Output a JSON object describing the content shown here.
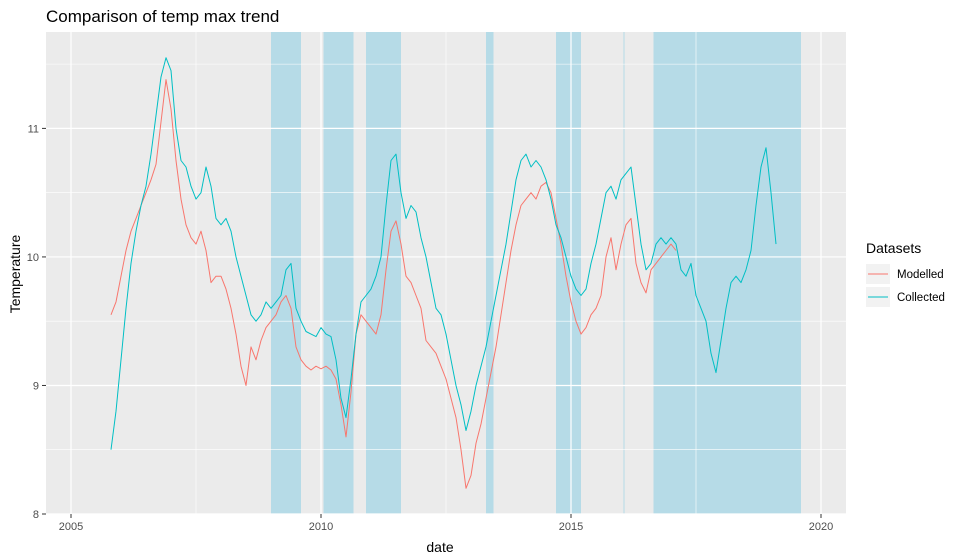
{
  "chart_data": {
    "type": "line",
    "title": "Comparison of temp max trend",
    "xlabel": "date",
    "ylabel": "Temperature",
    "xlim": [
      2004.5,
      2020.5
    ],
    "ylim": [
      8.0,
      11.75
    ],
    "x_ticks": [
      2005,
      2010,
      2015,
      2020
    ],
    "y_ticks": [
      8,
      9,
      10,
      11
    ],
    "grid": true,
    "panel_background": "#ebebeb",
    "grid_color": "#ffffff",
    "shade_color": "#add8e6",
    "shaded_ranges": [
      [
        2009.0,
        2009.6
      ],
      [
        2010.05,
        2010.65
      ],
      [
        2010.9,
        2011.6
      ],
      [
        2013.3,
        2013.45
      ],
      [
        2014.7,
        2015.2
      ],
      [
        2016.05,
        2016.07
      ],
      [
        2016.65,
        2019.6
      ]
    ],
    "legend": {
      "title": "Datasets",
      "position": "right",
      "entries": [
        {
          "label": "Modelled",
          "color": "#f8766d"
        },
        {
          "label": "Collected",
          "color": "#00bfc4"
        }
      ]
    },
    "series": [
      {
        "name": "Modelled",
        "color": "#f8766d",
        "x": [
          2005.8,
          2005.9,
          2006.0,
          2006.1,
          2006.2,
          2006.3,
          2006.4,
          2006.5,
          2006.6,
          2006.7,
          2006.8,
          2006.9,
          2007.0,
          2007.1,
          2007.2,
          2007.3,
          2007.4,
          2007.5,
          2007.6,
          2007.7,
          2007.8,
          2007.9,
          2008.0,
          2008.1,
          2008.2,
          2008.3,
          2008.4,
          2008.5,
          2008.6,
          2008.7,
          2008.8,
          2008.9,
          2009.0,
          2009.1,
          2009.2,
          2009.3,
          2009.4,
          2009.5,
          2009.6,
          2009.7,
          2009.8,
          2009.9,
          2010.0,
          2010.1,
          2010.2,
          2010.3,
          2010.4,
          2010.5,
          2010.6,
          2010.7,
          2010.8,
          2010.9,
          2011.0,
          2011.1,
          2011.2,
          2011.3,
          2011.4,
          2011.5,
          2011.6,
          2011.7,
          2011.8,
          2011.9,
          2012.0,
          2012.1,
          2012.2,
          2012.3,
          2012.4,
          2012.5,
          2012.6,
          2012.7,
          2012.8,
          2012.9,
          2013.0,
          2013.1,
          2013.2,
          2013.3,
          2013.4,
          2013.5,
          2013.6,
          2013.7,
          2013.8,
          2013.9,
          2014.0,
          2014.1,
          2014.2,
          2014.3,
          2014.4,
          2014.5,
          2014.6,
          2014.7,
          2014.8,
          2014.9,
          2015.0,
          2015.1,
          2015.2,
          2015.3,
          2015.4,
          2015.5,
          2015.6,
          2015.7,
          2015.8,
          2015.9,
          2016.0,
          2016.1,
          2016.2,
          2016.3,
          2016.4,
          2016.5,
          2016.6,
          2016.7,
          2016.8,
          2016.9,
          2017.0,
          2017.1
        ],
        "values": [
          9.55,
          9.65,
          9.85,
          10.05,
          10.2,
          10.3,
          10.4,
          10.5,
          10.6,
          10.72,
          11.05,
          11.38,
          11.15,
          10.75,
          10.45,
          10.25,
          10.15,
          10.1,
          10.2,
          10.05,
          9.8,
          9.85,
          9.85,
          9.75,
          9.6,
          9.4,
          9.15,
          9.0,
          9.3,
          9.2,
          9.35,
          9.45,
          9.5,
          9.55,
          9.65,
          9.7,
          9.6,
          9.3,
          9.2,
          9.15,
          9.12,
          9.15,
          9.13,
          9.15,
          9.12,
          9.05,
          8.85,
          8.6,
          8.95,
          9.4,
          9.55,
          9.5,
          9.45,
          9.4,
          9.55,
          9.9,
          10.2,
          10.28,
          10.1,
          9.85,
          9.8,
          9.7,
          9.6,
          9.35,
          9.3,
          9.25,
          9.15,
          9.05,
          8.9,
          8.75,
          8.5,
          8.2,
          8.3,
          8.55,
          8.7,
          8.9,
          9.1,
          9.3,
          9.55,
          9.8,
          10.05,
          10.25,
          10.4,
          10.45,
          10.5,
          10.45,
          10.55,
          10.58,
          10.5,
          10.3,
          10.1,
          9.85,
          9.65,
          9.5,
          9.4,
          9.45,
          9.55,
          9.6,
          9.7,
          10.0,
          10.15,
          9.9,
          10.1,
          10.25,
          10.3,
          9.95,
          9.8,
          9.72,
          9.9,
          9.95,
          10.0,
          10.05,
          10.1,
          10.05
        ]
      },
      {
        "name": "Collected",
        "color": "#00bfc4",
        "x": [
          2005.8,
          2005.9,
          2006.0,
          2006.1,
          2006.2,
          2006.3,
          2006.4,
          2006.5,
          2006.6,
          2006.7,
          2006.8,
          2006.9,
          2007.0,
          2007.1,
          2007.2,
          2007.3,
          2007.4,
          2007.5,
          2007.6,
          2007.7,
          2007.8,
          2007.9,
          2008.0,
          2008.1,
          2008.2,
          2008.3,
          2008.4,
          2008.5,
          2008.6,
          2008.7,
          2008.8,
          2008.9,
          2009.0,
          2009.1,
          2009.2,
          2009.3,
          2009.4,
          2009.5,
          2009.6,
          2009.7,
          2009.8,
          2009.9,
          2010.0,
          2010.1,
          2010.2,
          2010.3,
          2010.4,
          2010.5,
          2010.6,
          2010.7,
          2010.8,
          2010.9,
          2011.0,
          2011.1,
          2011.2,
          2011.3,
          2011.4,
          2011.5,
          2011.6,
          2011.7,
          2011.8,
          2011.9,
          2012.0,
          2012.1,
          2012.2,
          2012.3,
          2012.4,
          2012.5,
          2012.6,
          2012.7,
          2012.8,
          2012.9,
          2013.0,
          2013.1,
          2013.2,
          2013.3,
          2013.4,
          2013.5,
          2013.6,
          2013.7,
          2013.8,
          2013.9,
          2014.0,
          2014.1,
          2014.2,
          2014.3,
          2014.4,
          2014.5,
          2014.6,
          2014.7,
          2014.8,
          2014.9,
          2015.0,
          2015.1,
          2015.2,
          2015.3,
          2015.4,
          2015.5,
          2015.6,
          2015.7,
          2015.8,
          2015.9,
          2016.0,
          2016.1,
          2016.2,
          2016.3,
          2016.4,
          2016.5,
          2016.6,
          2016.7,
          2016.8,
          2016.9,
          2017.0,
          2017.1,
          2017.2,
          2017.3,
          2017.4,
          2017.5,
          2017.6,
          2017.7,
          2017.8,
          2017.9,
          2018.0,
          2018.1,
          2018.2,
          2018.3,
          2018.4,
          2018.5,
          2018.6,
          2018.7,
          2018.8,
          2018.9,
          2019.0,
          2019.1
        ],
        "values": [
          8.5,
          8.8,
          9.2,
          9.6,
          9.95,
          10.2,
          10.4,
          10.55,
          10.8,
          11.1,
          11.4,
          11.55,
          11.45,
          11.0,
          10.75,
          10.7,
          10.55,
          10.45,
          10.5,
          10.7,
          10.55,
          10.3,
          10.25,
          10.3,
          10.2,
          10.0,
          9.85,
          9.7,
          9.55,
          9.5,
          9.55,
          9.65,
          9.6,
          9.65,
          9.7,
          9.9,
          9.95,
          9.6,
          9.5,
          9.42,
          9.4,
          9.38,
          9.45,
          9.4,
          9.38,
          9.2,
          8.9,
          8.75,
          9.05,
          9.4,
          9.65,
          9.7,
          9.75,
          9.85,
          10.0,
          10.4,
          10.75,
          10.8,
          10.5,
          10.3,
          10.4,
          10.35,
          10.15,
          10.0,
          9.8,
          9.6,
          9.55,
          9.4,
          9.2,
          9.0,
          8.85,
          8.65,
          8.8,
          9.0,
          9.15,
          9.3,
          9.5,
          9.7,
          9.9,
          10.1,
          10.35,
          10.6,
          10.75,
          10.8,
          10.7,
          10.75,
          10.7,
          10.6,
          10.45,
          10.25,
          10.15,
          10.0,
          9.85,
          9.75,
          9.7,
          9.75,
          9.95,
          10.1,
          10.3,
          10.5,
          10.55,
          10.45,
          10.6,
          10.65,
          10.7,
          10.4,
          10.1,
          9.9,
          9.95,
          10.1,
          10.15,
          10.1,
          10.15,
          10.1,
          9.9,
          9.85,
          9.95,
          9.7,
          9.6,
          9.5,
          9.25,
          9.1,
          9.35,
          9.6,
          9.8,
          9.85,
          9.8,
          9.9,
          10.05,
          10.4,
          10.7,
          10.85,
          10.5,
          10.1
        ]
      }
    ]
  }
}
